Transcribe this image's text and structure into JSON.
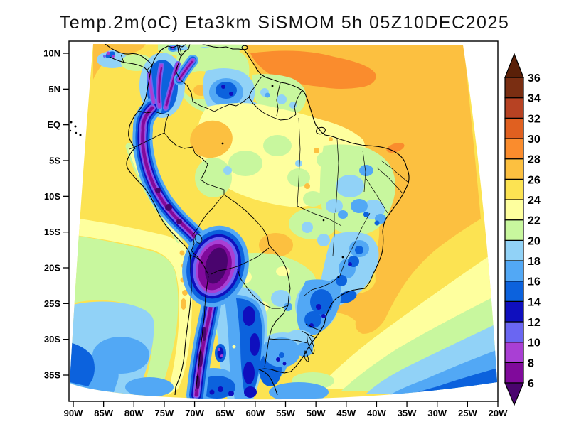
{
  "title": "Temp.2m(oC) Eta3km SiSMOM 5h 05Z10DEC2025",
  "header": {
    "variable": "Temp.2m(oC)",
    "model": "Eta3km",
    "system": "SiSMOM",
    "forecast_hour": "5h",
    "init_time": "05Z10DEC2025"
  },
  "axes": {
    "lat_ticks": [
      "10N",
      "5N",
      "EQ",
      "5S",
      "10S",
      "15S",
      "20S",
      "25S",
      "30S",
      "35S"
    ],
    "lon_ticks": [
      "90W",
      "85W",
      "80W",
      "75W",
      "70W",
      "65W",
      "60W",
      "55W",
      "50W",
      "45W",
      "40W",
      "35W",
      "30W",
      "25W",
      "20W"
    ]
  },
  "colorbar": {
    "tick_labels_top_to_bottom": [
      "36",
      "34",
      "32",
      "30",
      "28",
      "26",
      "24",
      "22",
      "20",
      "18",
      "16",
      "14",
      "12",
      "10",
      "8",
      "6"
    ],
    "segments_bottom_to_top": [
      {
        "range": "<6",
        "color": "#4a046e"
      },
      {
        "range": "6-8",
        "color": "#800a9b"
      },
      {
        "range": "8-10",
        "color": "#a93fd4"
      },
      {
        "range": "10-12",
        "color": "#6a66f2"
      },
      {
        "range": "12-14",
        "color": "#0f0fbe"
      },
      {
        "range": "14-16",
        "color": "#0c62dd"
      },
      {
        "range": "16-18",
        "color": "#52a8f5"
      },
      {
        "range": "18-20",
        "color": "#91d2f7"
      },
      {
        "range": "20-22",
        "color": "#c8f79e"
      },
      {
        "range": "22-24",
        "color": "#feff9e"
      },
      {
        "range": "24-26",
        "color": "#fce352"
      },
      {
        "range": "26-28",
        "color": "#fcc040"
      },
      {
        "range": "28-30",
        "color": "#fa8c2d"
      },
      {
        "range": "30-32",
        "color": "#e06020"
      },
      {
        "range": "32-34",
        "color": "#b74223"
      },
      {
        "range": "34-36",
        "color": "#7a2e12"
      },
      {
        "range": ">36",
        "color": "#5a2008"
      }
    ]
  },
  "chart_data": {
    "type": "heatmap",
    "title": "Temp.2m(oC) Eta3km SiSMOM 5h 05Z10DEC2025",
    "variable": "2-metre temperature",
    "units": "oC",
    "levels": [
      6,
      8,
      10,
      12,
      14,
      16,
      18,
      20,
      22,
      24,
      26,
      28,
      30,
      32,
      34,
      36
    ],
    "lon_ticks": [
      "90W",
      "85W",
      "80W",
      "75W",
      "70W",
      "65W",
      "60W",
      "55W",
      "50W",
      "45W",
      "40W",
      "35W",
      "30W",
      "25W",
      "20W"
    ],
    "lat_ticks": [
      "10N",
      "5N",
      "EQ",
      "5S",
      "10S",
      "15S",
      "20S",
      "25S",
      "30S",
      "35S"
    ],
    "legend_position": "right",
    "grid": false,
    "regions": [
      {
        "area": "Amazon basin (northern Brazil)",
        "approx_temp_oC": "22-26"
      },
      {
        "area": "Tropical Atlantic northeast of Brazil",
        "approx_temp_oC": "26-28"
      },
      {
        "area": "Atlantic warm patch near 5-10N 45-55W",
        "approx_temp_oC": "28-30"
      },
      {
        "area": "Warm patch off NE Brazil coast (~3S 45W)",
        "approx_temp_oC": "28-30"
      },
      {
        "area": "Andes cordillera (Colombia to Chile)",
        "approx_temp_oC": "6-12"
      },
      {
        "area": "Bolivian Altiplano / Puna core",
        "approx_temp_oC": "<6"
      },
      {
        "area": "Venezuelan llanos patch",
        "approx_temp_oC": "26-28"
      },
      {
        "area": "Guiana highlands (S Venezuela)",
        "approx_temp_oC": "14-18"
      },
      {
        "area": "Western Amazon warm patch (Peru lowlands)",
        "approx_temp_oC": "26-28"
      },
      {
        "area": "NE Brazil interior",
        "approx_temp_oC": "16-22"
      },
      {
        "area": "SE Brazil highlands (Minas Gerais)",
        "approx_temp_oC": "14-20"
      },
      {
        "area": "Sao Paulo / Parana",
        "approx_temp_oC": "12-18"
      },
      {
        "area": "Paraguay / northern Argentina",
        "approx_temp_oC": "18-22"
      },
      {
        "area": "Central Argentina cold tongue",
        "approx_temp_oC": "12-16"
      },
      {
        "area": "Uruguay",
        "approx_temp_oC": "14-18"
      },
      {
        "area": "Peru-Chile coastal strip",
        "approx_temp_oC": "20-24"
      },
      {
        "area": "Equatorial Pacific off Ecuador",
        "approx_temp_oC": "24-26"
      },
      {
        "area": "SW Pacific corner (35S 90W)",
        "approx_temp_oC": "14-20"
      },
      {
        "area": "SE Atlantic corner (35S 20-30W)",
        "approx_temp_oC": "14-22"
      },
      {
        "area": "Brazil Current warm tongue along SE coast",
        "approx_temp_oC": "26-28"
      }
    ]
  }
}
